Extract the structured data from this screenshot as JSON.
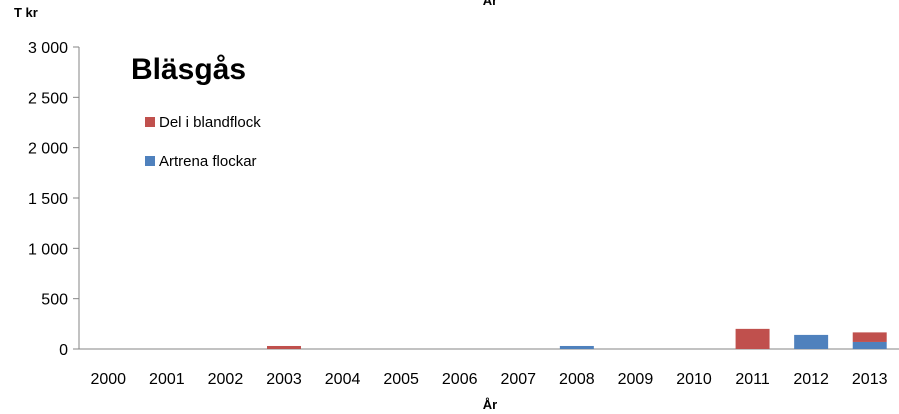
{
  "chart_data": {
    "type": "bar",
    "stacked": true,
    "title": "Bläsgås",
    "xlabel": "År",
    "top_label": "År",
    "ylabel": "T kr",
    "categories": [
      "2000",
      "2001",
      "2002",
      "2003",
      "2004",
      "2005",
      "2006",
      "2007",
      "2008",
      "2009",
      "2010",
      "2011",
      "2012",
      "2013"
    ],
    "y_ticks": [
      "0",
      "500",
      "1 000",
      "1 500",
      "2 000",
      "2 500",
      "3 000"
    ],
    "y_tick_values": [
      0,
      500,
      1000,
      1500,
      2000,
      2500,
      3000
    ],
    "ylim": [
      0,
      3000
    ],
    "grid": false,
    "legend_position": "top-left",
    "series": [
      {
        "name": "Artrena flockar",
        "color": "#4f81bd",
        "values": [
          0,
          0,
          0,
          0,
          0,
          0,
          0,
          0,
          30,
          0,
          0,
          0,
          140,
          70
        ]
      },
      {
        "name": "Del i blandflock",
        "color": "#c0504d",
        "values": [
          0,
          0,
          0,
          30,
          0,
          0,
          0,
          0,
          0,
          0,
          0,
          200,
          0,
          95
        ]
      }
    ],
    "legend_order": [
      1,
      0
    ]
  }
}
